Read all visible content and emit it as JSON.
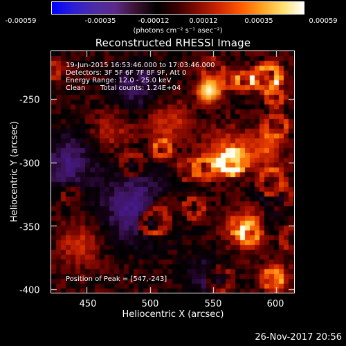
{
  "colorbar": {
    "ticks": [
      "-0.00059",
      "-0.00035",
      "-0.00012",
      "0.00012",
      "0.00035",
      "0.00059"
    ],
    "unit": "(photons cm⁻² s⁻¹ asec⁻²)",
    "colors": [
      "#0000ff",
      "#2b1fd6",
      "#4b2ca6",
      "#5c2a8a",
      "#3a1230",
      "#000000",
      "#3a0000",
      "#8a0d00",
      "#d12800",
      "#ff5a00",
      "#ffa020",
      "#ffe070",
      "#ffffff"
    ]
  },
  "chart_data": {
    "type": "heatmap",
    "title": "Reconstructed RHESSI Image",
    "xlabel": "Heliocentric X (arcsec)",
    "ylabel": "Heliocentric Y (arcsec)",
    "xlim": [
      422,
      614
    ],
    "ylim": [
      -403,
      -212
    ],
    "xticks": [
      450,
      500,
      550,
      600
    ],
    "yticks": [
      -250,
      -300,
      -350,
      -400
    ],
    "vlim": [
      -0.00059,
      0.00059
    ],
    "peak": [
      547,
      -243
    ],
    "annotations": [
      "19-Jun-2015 16:53:46.000 to 17:03:46.000",
      "Detectors: 3F 5F 6F 7F 8F 9F, Att 0",
      "Energy Range: 12.0 - 25.0 keV",
      "Clean",
      "Total counts: 1.24E+04",
      "Position of Peak = [547,-243]"
    ]
  },
  "footer": {
    "date": "26-Nov-2017 20:56"
  }
}
